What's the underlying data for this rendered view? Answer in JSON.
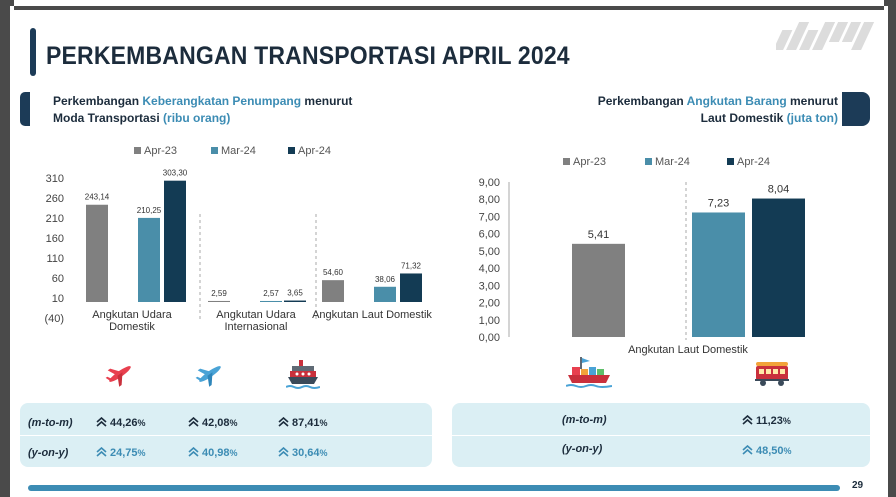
{
  "title": "PERKEMBANGAN TRANSPORTASI APRIL 2024",
  "left_header": {
    "line1_a": "Perkembangan ",
    "line1_b": "Keberangkatan Penumpang",
    "line1_c": " menurut",
    "line2_a": "Moda Transportasi ",
    "line2_b": "(ribu orang)"
  },
  "right_header": {
    "line1_a": "Perkembangan ",
    "line1_b": "Angkutan Barang",
    "line1_c": " menurut",
    "line2_a": "Laut Domestik ",
    "line2_b": "(juta ton)"
  },
  "colors": {
    "apr23": "#808080",
    "mar24": "#4a8ea9",
    "apr24": "#133b54",
    "accent": "#3c8cb4",
    "dark": "#1c3b57",
    "panel": "#dbeff4"
  },
  "chart_data": [
    {
      "type": "bar",
      "legend": [
        "Apr-23",
        "Mar-24",
        "Apr-24"
      ],
      "categories": [
        "Angkutan Udara\nDomestik",
        "Angkutan Udara\nInternasional",
        "Angkutan Laut Domestik"
      ],
      "series": [
        {
          "name": "Apr-23",
          "values": [
            243.14,
            2.59,
            54.6
          ],
          "labels": [
            "243,14",
            "2,59",
            "54,60"
          ]
        },
        {
          "name": "Mar-24",
          "values": [
            210.25,
            2.57,
            38.06
          ],
          "labels": [
            "210,25",
            "2,57",
            "38,06"
          ]
        },
        {
          "name": "Apr-24",
          "values": [
            303.3,
            3.65,
            71.32
          ],
          "labels": [
            "303,30",
            "3,65",
            "71,32"
          ]
        }
      ],
      "yticks": [
        "310",
        "260",
        "210",
        "160",
        "110",
        "60",
        "10",
        "(40)"
      ],
      "ylim": [
        -40,
        310
      ]
    },
    {
      "type": "bar",
      "legend": [
        "Apr-23",
        "Mar-24",
        "Apr-24"
      ],
      "categories": [
        "Angkutan Laut Domestik"
      ],
      "series": [
        {
          "name": "Apr-23",
          "values": [
            5.41
          ],
          "labels": [
            "5,41"
          ]
        },
        {
          "name": "Mar-24",
          "values": [
            7.23
          ],
          "labels": [
            "7,23"
          ]
        },
        {
          "name": "Apr-24",
          "values": [
            8.04
          ],
          "labels": [
            "8,04"
          ]
        }
      ],
      "yticks": [
        "9,00",
        "8,00",
        "7,00",
        "6,00",
        "5,00",
        "4,00",
        "3,00",
        "2,00",
        "1,00",
        "0,00"
      ],
      "ylim": [
        0,
        9
      ]
    }
  ],
  "icons": [
    "plane-domestic-icon",
    "plane-international-icon",
    "ship-passenger-icon",
    "cargo-ship-icon",
    "train-car-icon"
  ],
  "left_table": {
    "rows": [
      {
        "label": "(m-to-m)",
        "values": [
          [
            "44,26",
            "%"
          ],
          [
            "42,08",
            "%"
          ],
          [
            "87,41",
            "%"
          ]
        ]
      },
      {
        "label": "(y-on-y)",
        "values": [
          [
            "24,75",
            "%"
          ],
          [
            "40,98",
            "%"
          ],
          [
            "30,64",
            "%"
          ]
        ]
      }
    ]
  },
  "right_table": {
    "rows": [
      {
        "label": "(m-to-m)",
        "values": [
          [
            "11,23",
            "%"
          ]
        ]
      },
      {
        "label": "(y-on-y)",
        "values": [
          [
            "48,50",
            "%"
          ]
        ]
      }
    ]
  },
  "page_number": "29"
}
